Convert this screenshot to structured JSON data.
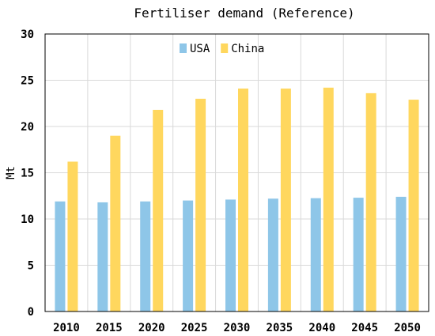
{
  "chart_data": {
    "type": "bar",
    "title": "Fertiliser demand (Reference)",
    "xlabel": "",
    "ylabel": "Mt",
    "ylim": [
      0,
      30
    ],
    "yticks": [
      0,
      5,
      10,
      15,
      20,
      25,
      30
    ],
    "grid": true,
    "legend_position": "top-center",
    "categories": [
      "2010",
      "2015",
      "2020",
      "2025",
      "2030",
      "2035",
      "2040",
      "2045",
      "2050"
    ],
    "series": [
      {
        "name": "USA",
        "color": "#8ec6e8",
        "values": [
          11.9,
          11.8,
          11.9,
          12.0,
          12.1,
          12.2,
          12.25,
          12.3,
          12.4
        ]
      },
      {
        "name": "China",
        "color": "#ffd75e",
        "values": [
          16.2,
          19.0,
          21.8,
          23.0,
          24.1,
          24.1,
          24.2,
          23.6,
          22.9
        ]
      }
    ]
  }
}
